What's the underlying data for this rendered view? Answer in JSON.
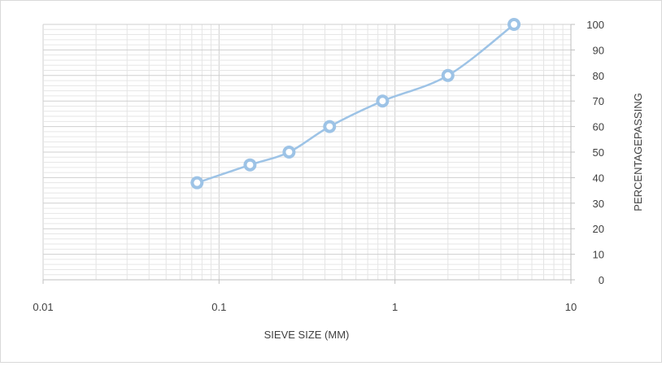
{
  "chart_data": {
    "type": "scatter",
    "title": "",
    "xlabel": "SIEVE SIZE (MM)",
    "ylabel": "PERCENTAGEPASSING",
    "x_scale": "log",
    "xlim": [
      0.01,
      10
    ],
    "ylim": [
      0,
      100
    ],
    "x_ticks": [
      "0.01",
      "0.1",
      "1",
      "10"
    ],
    "y_ticks": [
      "0",
      "10",
      "20",
      "30",
      "40",
      "50",
      "60",
      "70",
      "80",
      "90",
      "100"
    ],
    "y_axis_side": "right",
    "grid": true,
    "legend": "none",
    "series": [
      {
        "x": [
          0.075,
          0.15,
          0.25,
          0.425,
          0.85,
          2.0,
          4.75
        ],
        "y": [
          38,
          45,
          50,
          60,
          70,
          80,
          100
        ],
        "color": "#9dc3e6",
        "marker": "circle",
        "smooth": true
      }
    ]
  }
}
